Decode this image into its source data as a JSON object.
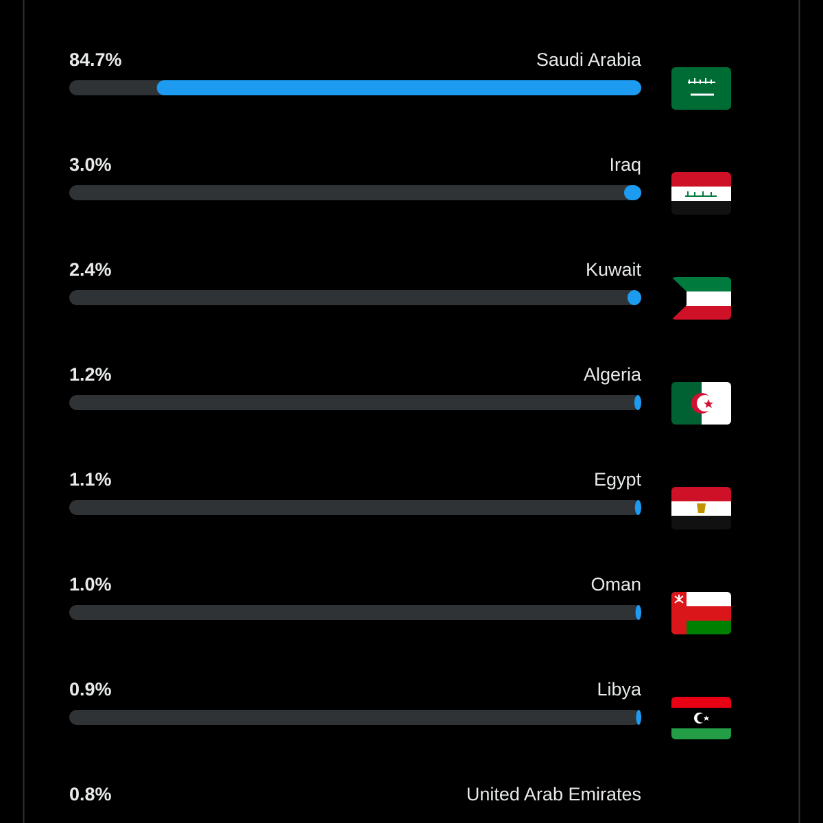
{
  "chart_data": {
    "type": "bar",
    "categories": [
      "Saudi Arabia",
      "Iraq",
      "Kuwait",
      "Algeria",
      "Egypt",
      "Oman",
      "Libya",
      "United Arab Emirates"
    ],
    "values": [
      84.7,
      3.0,
      2.4,
      1.2,
      1.1,
      1.0,
      0.9,
      0.8
    ],
    "value_labels": [
      "84.7%",
      "3.0%",
      "2.4%",
      "1.2%",
      "1.1%",
      "1.0%",
      "0.9%",
      "0.8%"
    ],
    "color": "#1d9bf0",
    "xlim": [
      0,
      100
    ]
  }
}
